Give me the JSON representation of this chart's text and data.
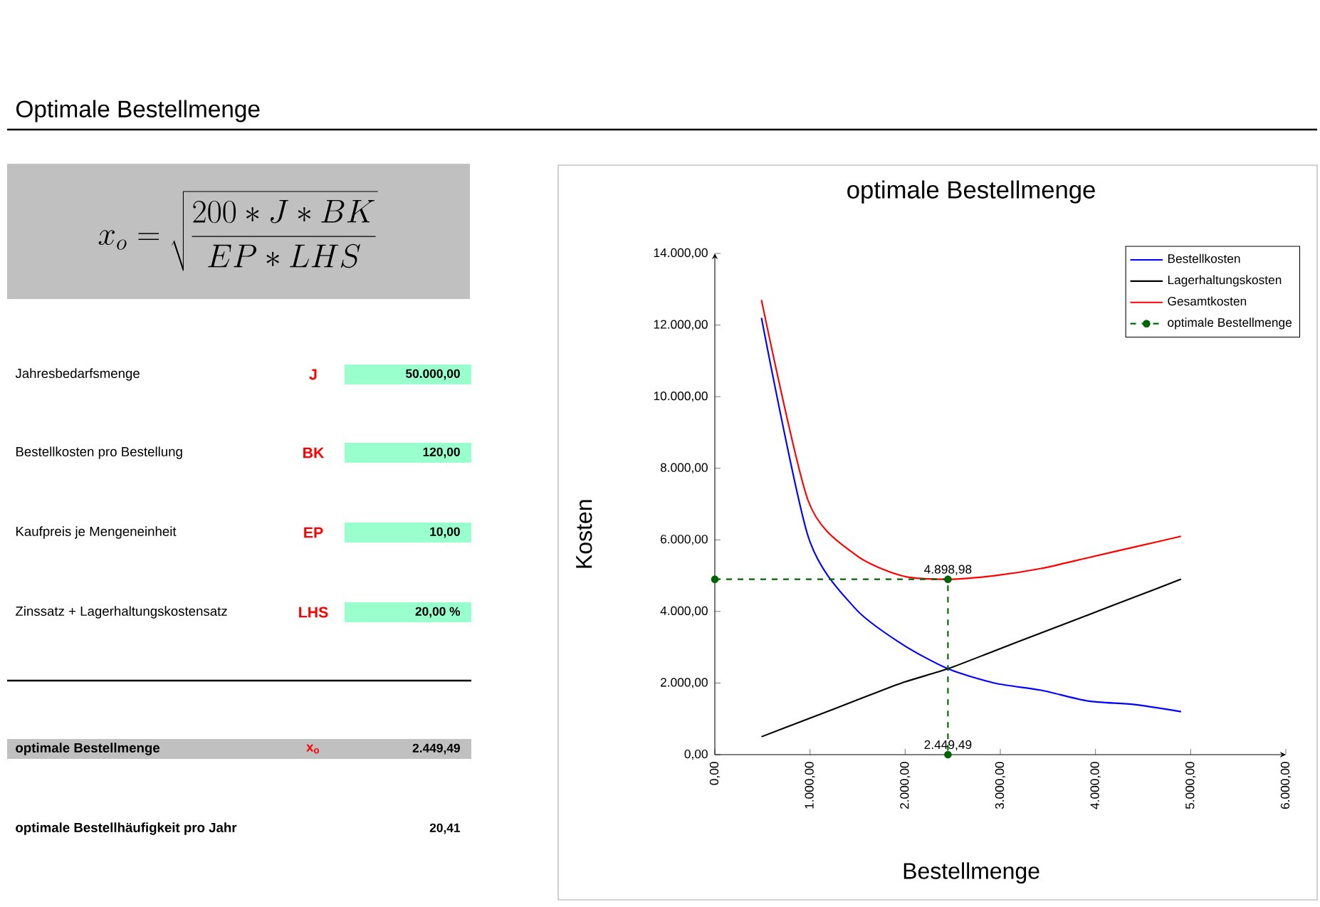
{
  "chart_data": [
    {
      "type": "other",
      "title": "Optimale Bestellmenge",
      "annotations": [
        "x_o=\\sqrt{\\frac{200*J*BK}{EP*LHS}}",
        "Jahresbedarfsmenge",
        "J",
        "50.000,00",
        "Bestellkosten pro Bestellung",
        "BK",
        "120,00",
        "Kaufpreis je Mengeneinheit",
        "EP",
        "10,00",
        "Zinssatz + Lagerhaltungskostensatz",
        "LHS",
        "20,00 %",
        "optimale Bestellmenge",
        "x$_{o}$",
        "2.449,49",
        "optimale Bestellhäufigkeit pro Jahr",
        "20,41"
      ]
    },
    {
      "type": "line",
      "title": "optimale Bestellmenge",
      "xlabel": "Bestellmenge",
      "ylabel": "Kosten",
      "xlim": [
        0,
        6000
      ],
      "ylim": [
        0,
        14000
      ],
      "xticks": [
        {
          "value": 0,
          "label": "0,00"
        },
        {
          "value": 1000,
          "label": "1.000,00"
        },
        {
          "value": 2000,
          "label": "2.000,00"
        },
        {
          "value": 3000,
          "label": "3.000,00"
        },
        {
          "value": 4000,
          "label": "4.000,00"
        },
        {
          "value": 5000,
          "label": "5.000,00"
        },
        {
          "value": 6000,
          "label": "6.000,00"
        }
      ],
      "yticks": [
        {
          "value": 0,
          "label": "0,00"
        },
        {
          "value": 2000,
          "label": "2.000,00"
        },
        {
          "value": 4000,
          "label": "4.000,00"
        },
        {
          "value": 6000,
          "label": "6.000,00"
        },
        {
          "value": 8000,
          "label": "8.000,00"
        },
        {
          "value": 10000,
          "label": "10.000,00"
        },
        {
          "value": 12000,
          "label": "12.000,00"
        },
        {
          "value": 14000,
          "label": "14.000,00"
        }
      ],
      "legend": "top right",
      "grid": false,
      "series": [
        {
          "name": "Bestellkosten",
          "color": "#0000ff",
          "x": [
            490,
            980,
            1470,
            1960,
            2449,
            2939,
            3429,
            3919,
            4409,
            4899
          ],
          "values": [
            12200,
            6100,
            4100,
            3100,
            2400,
            2000,
            1800,
            1500,
            1400,
            1200
          ]
        },
        {
          "name": "Lagerhaltungskosten",
          "color": "#000000",
          "x": [
            490,
            980,
            1470,
            1960,
            2449,
            2939,
            3429,
            3919,
            4409,
            4899
          ],
          "values": [
            500,
            1000,
            1500,
            2000,
            2400,
            2900,
            3400,
            3900,
            4400,
            4900
          ]
        },
        {
          "name": "Gesamtkosten",
          "color": "#ff0000",
          "x": [
            490,
            980,
            1470,
            1960,
            2449,
            2939,
            3429,
            3919,
            4409,
            4899
          ],
          "values": [
            12700,
            7100,
            5600,
            5000,
            4900,
            5000,
            5200,
            5500,
            5800,
            6100
          ]
        },
        {
          "name": "optimale Bestellmenge",
          "color": "#006400",
          "marker": "circle",
          "line_style": "dashed",
          "x": [
            0,
            2449.49,
            2449.49
          ],
          "values": [
            4898.98,
            4898.98,
            0
          ],
          "value_labels": [
            null,
            "4.898,98",
            null
          ]
        }
      ],
      "annotations": [
        {
          "text": "2.449,49",
          "x": 2449.49,
          "y": 0
        }
      ]
    }
  ]
}
